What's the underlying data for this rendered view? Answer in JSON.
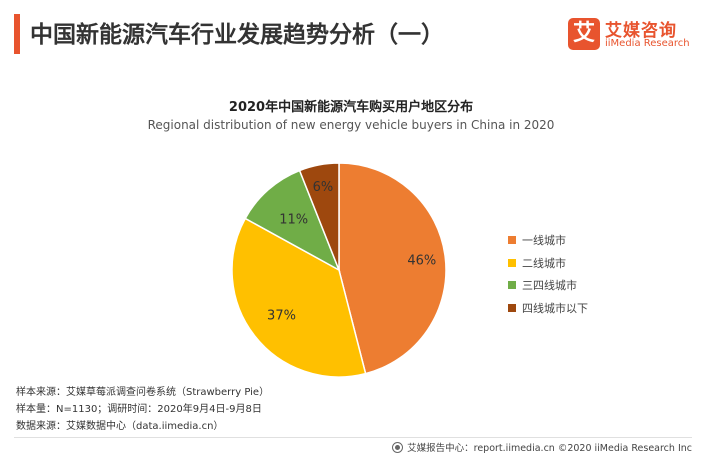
{
  "header": {
    "title": "中国新能源汽车行业发展趋势分析（一）",
    "logo_icon_char": "艾",
    "logo_cn": "艾媒咨询",
    "logo_en": "iiMedia Research",
    "accent_color": "#e8542e"
  },
  "chart_data": {
    "type": "pie",
    "title": "2020年中国新能源汽车购买用户地区分布",
    "subtitle": "Regional distribution of new energy vehicle buyers in China in 2020",
    "categories": [
      "一线城市",
      "二线城市",
      "三四线城市",
      "四线城市以下"
    ],
    "values": [
      46,
      37,
      11,
      6
    ],
    "value_labels": [
      "46%",
      "37%",
      "11%",
      "6%"
    ],
    "colors": [
      "#ed7d31",
      "#ffc000",
      "#70ad47",
      "#9e480e"
    ],
    "legend_position": "right"
  },
  "notes": [
    "样本来源：艾媒草莓派调查问卷系统（Strawberry Pie）",
    "样本量：N=1130；调研时间：2020年9月4日-9月8日",
    "数据来源：艾媒数据中心（data.iimedia.cn）"
  ],
  "footer": {
    "text": "艾媒报告中心：report.iimedia.cn  ©2020  iiMedia Research  Inc"
  }
}
